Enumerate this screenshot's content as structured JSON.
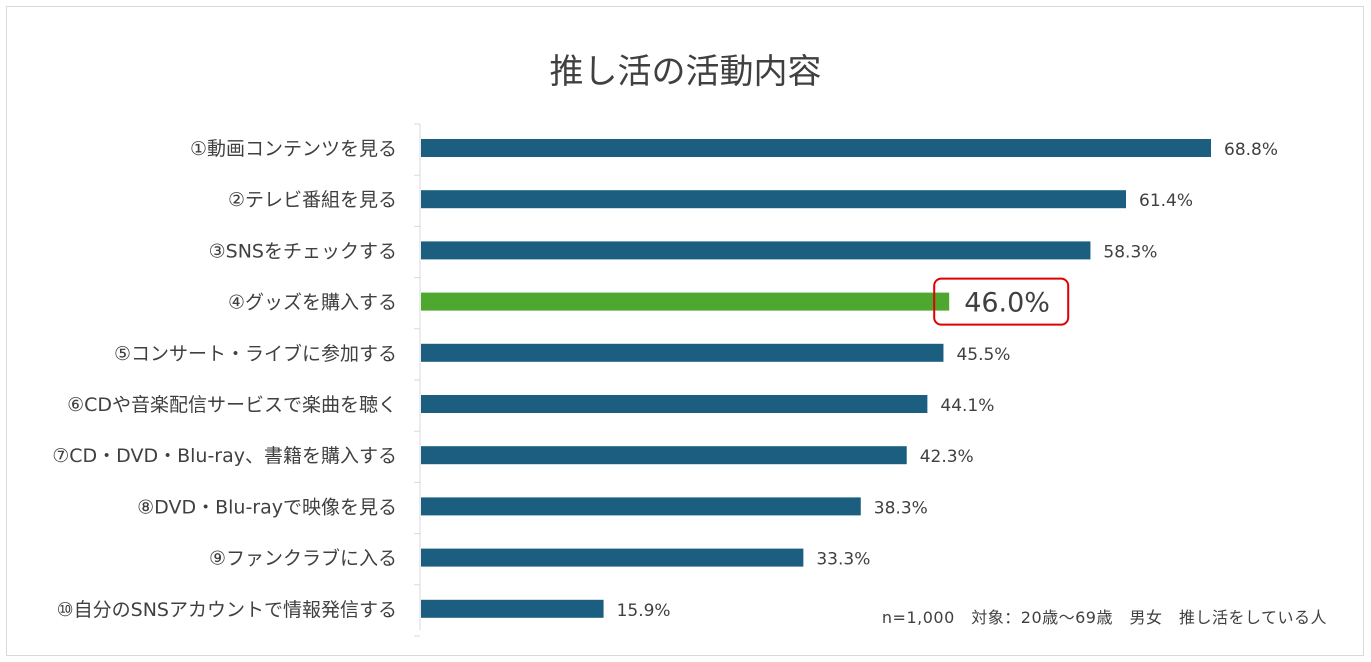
{
  "chart_data": {
    "type": "bar",
    "orientation": "horizontal",
    "title": "推し活の活動内容",
    "categories": [
      "①動画コンテンツを見る",
      "②テレビ番組を見る",
      "③SNSをチェックする",
      "④グッズを購入する",
      "⑤コンサート・ライブに参加する",
      "⑥CDや音楽配信サービスで楽曲を聴く",
      "⑦CD・DVD・Blu-ray、書籍を購入する",
      "⑧DVD・Blu-rayで映像を見る",
      "⑨ファンクラブに入る",
      "⑩自分のSNSアカウントで情報発信する"
    ],
    "values": [
      68.8,
      61.4,
      58.3,
      46.0,
      45.5,
      44.1,
      42.3,
      38.3,
      33.3,
      15.9
    ],
    "value_labels": [
      "68.8%",
      "61.4%",
      "58.3%",
      "46.0%",
      "45.5%",
      "44.1%",
      "42.3%",
      "38.3%",
      "33.3%",
      "15.9%"
    ],
    "highlight_index": 3,
    "xlim": [
      0,
      70
    ],
    "grid": false,
    "colors": {
      "bar": "#1b5e80",
      "highlight_bar": "#4ea72e",
      "highlight_box": "#e00000",
      "text": "#404040"
    }
  },
  "note": "n=1,000　対象：20歳～69歳　男女　推し活をしている人"
}
